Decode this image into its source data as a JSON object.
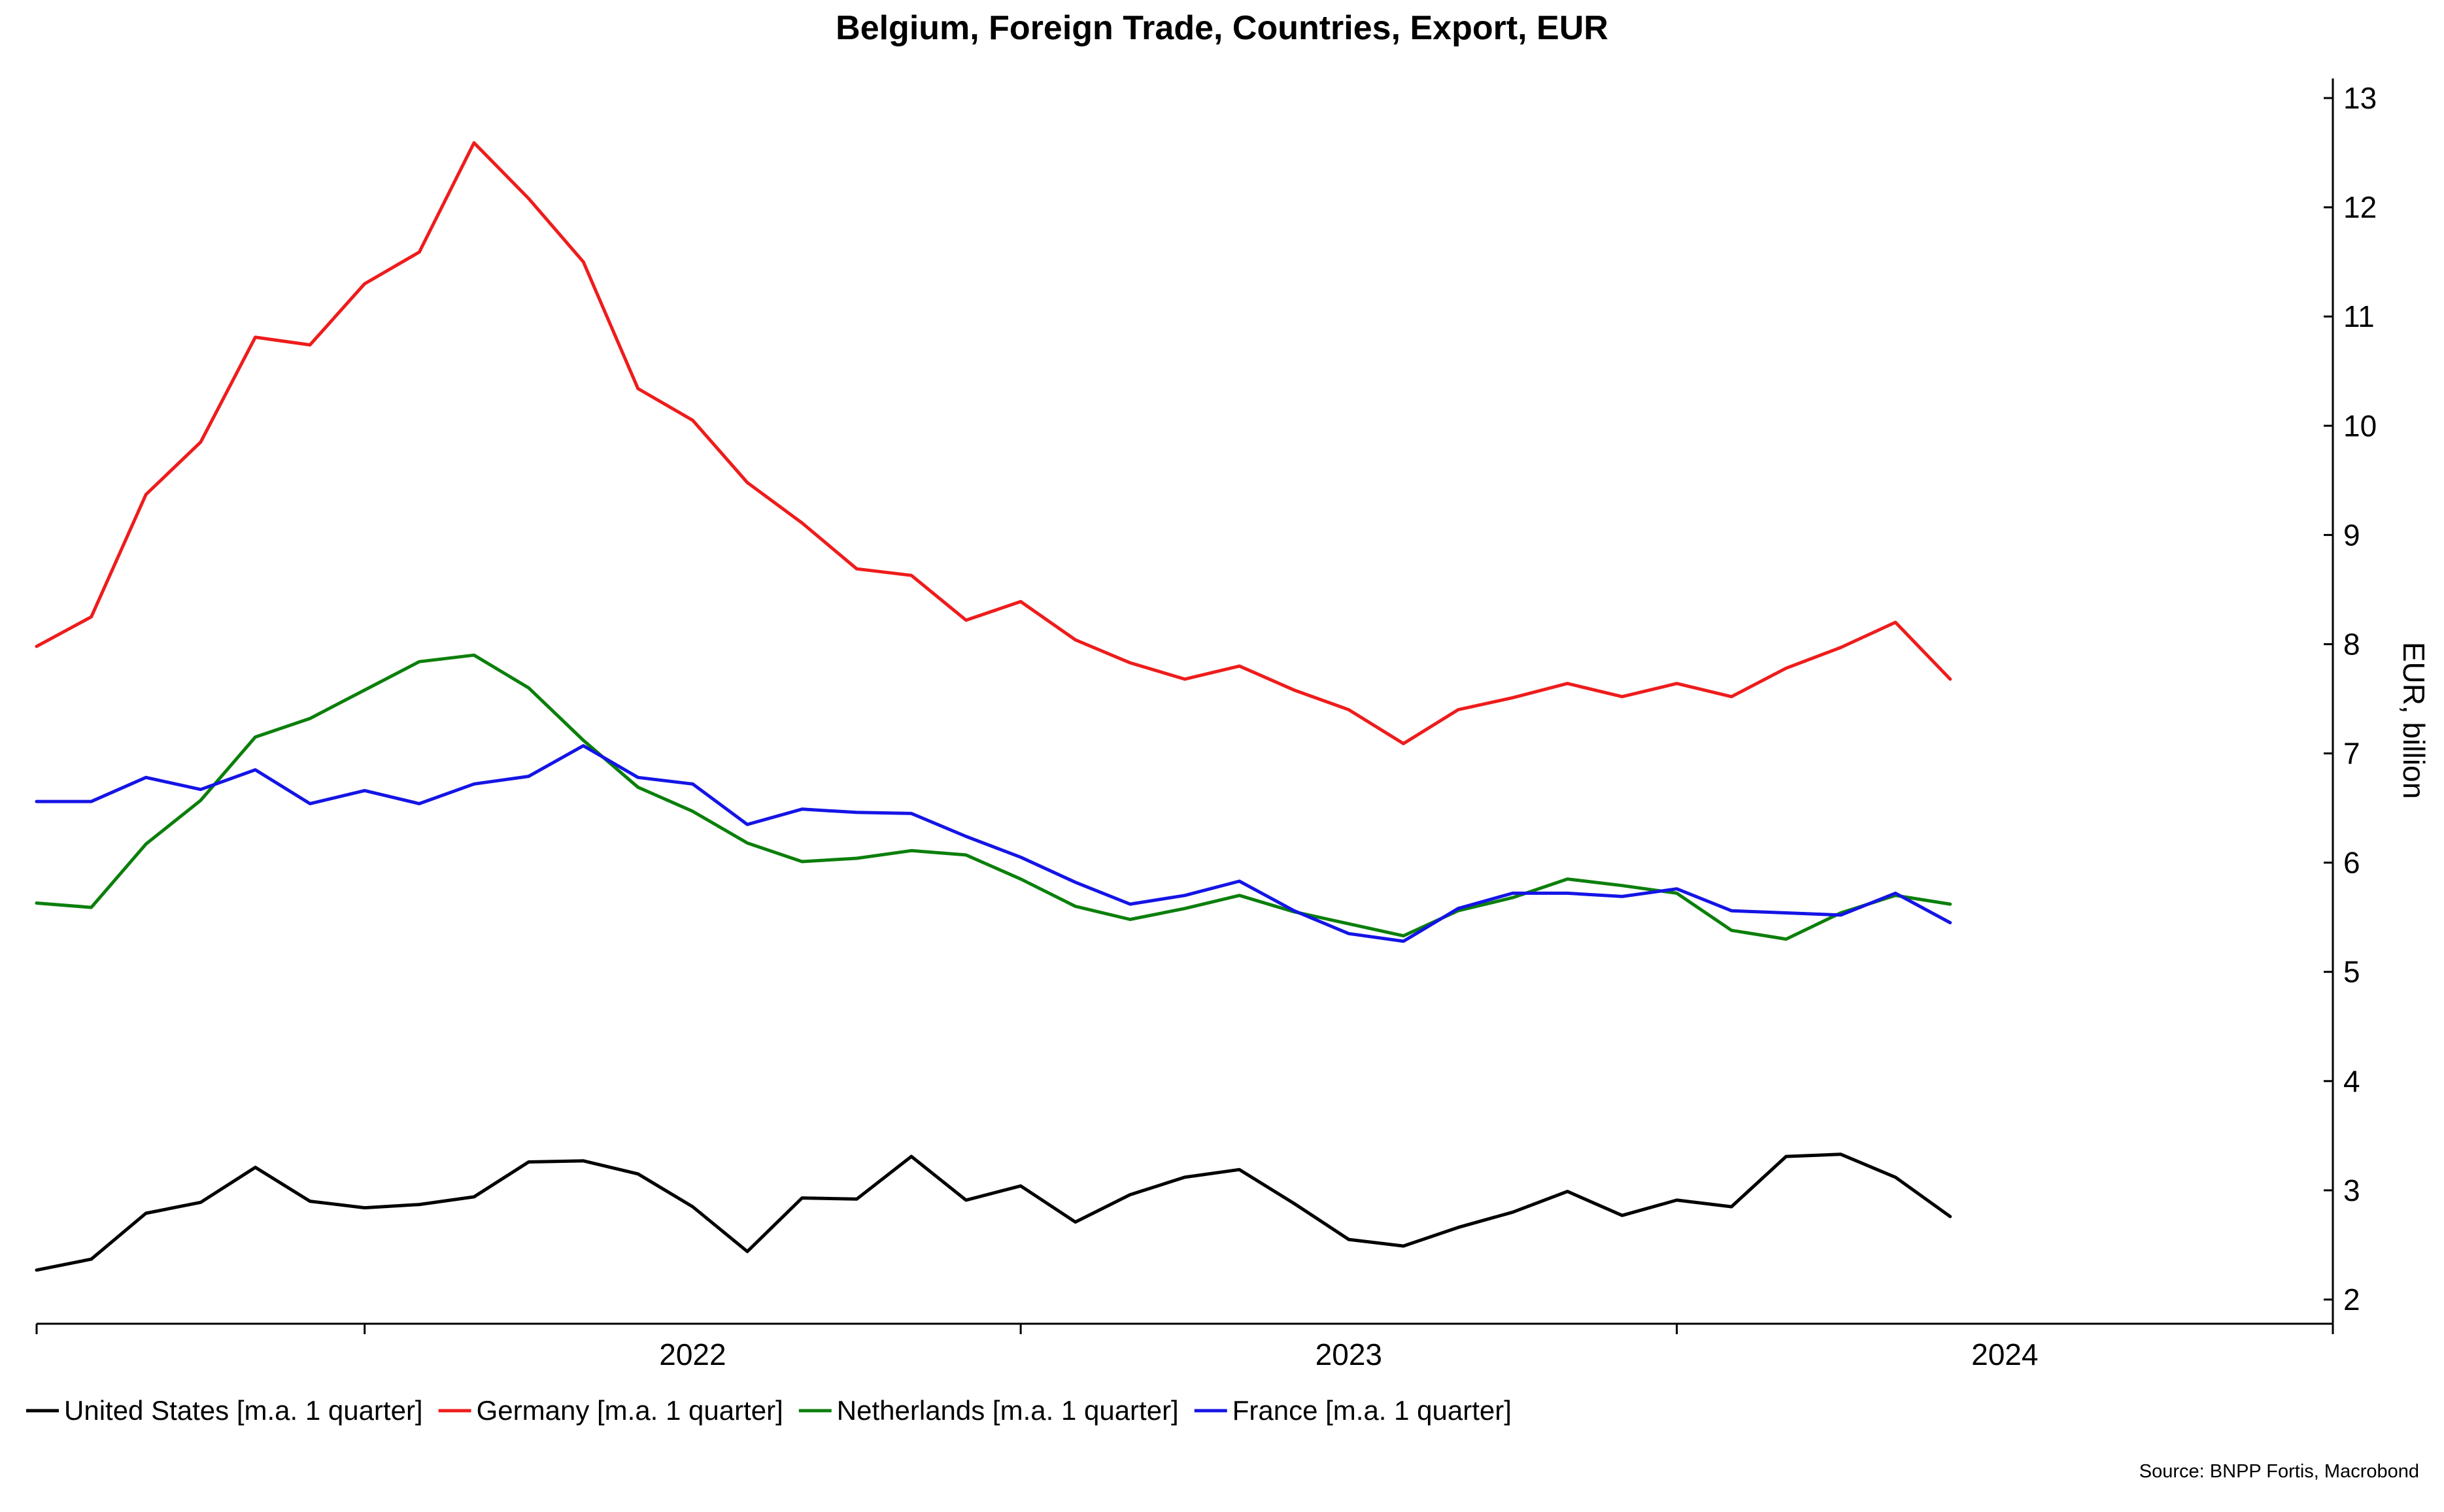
{
  "chart_data": {
    "type": "line",
    "title": "Belgium, Foreign Trade, Countries, Export, EUR",
    "ylabel": "EUR, billion",
    "xlabel": "",
    "ylim": [
      2,
      13
    ],
    "y_ticks": [
      2,
      3,
      4,
      5,
      6,
      7,
      8,
      9,
      10,
      11,
      12,
      13
    ],
    "x_range": [
      "2021-07",
      "2024-12"
    ],
    "x_tick_labels": [
      "2022",
      "2023",
      "2024"
    ],
    "x": [
      "2021-07",
      "2021-08",
      "2021-09",
      "2021-10",
      "2021-11",
      "2021-12",
      "2022-01",
      "2022-02",
      "2022-03",
      "2022-04",
      "2022-05",
      "2022-06",
      "2022-07",
      "2022-08",
      "2022-09",
      "2022-10",
      "2022-11",
      "2022-12",
      "2023-01",
      "2023-02",
      "2023-03",
      "2023-04",
      "2023-05",
      "2023-06",
      "2023-07",
      "2023-08",
      "2023-09",
      "2023-10",
      "2023-11",
      "2023-12",
      "2024-01",
      "2024-02",
      "2024-03",
      "2024-04",
      "2024-05",
      "2024-06",
      "2024-07"
    ],
    "series": [
      {
        "name": "United States [m.a. 1 quarter]",
        "color": "#000000",
        "values": [
          2.27,
          2.37,
          2.79,
          2.89,
          3.21,
          2.9,
          2.84,
          2.87,
          2.94,
          3.26,
          3.27,
          3.15,
          2.85,
          2.44,
          2.93,
          2.92,
          3.31,
          2.91,
          3.04,
          2.71,
          2.96,
          3.12,
          3.19,
          2.88,
          2.55,
          2.49,
          2.66,
          2.8,
          2.99,
          2.77,
          2.91,
          2.85,
          3.31,
          3.33,
          3.12,
          2.76,
          null
        ]
      },
      {
        "name": "Germany [m.a. 1 quarter]",
        "color": "#ee1c1c",
        "values": [
          7.98,
          8.25,
          9.37,
          9.85,
          10.81,
          10.74,
          11.3,
          11.59,
          12.59,
          12.08,
          11.5,
          10.34,
          10.05,
          9.48,
          9.11,
          8.69,
          8.63,
          8.22,
          8.39,
          8.04,
          7.83,
          7.68,
          7.8,
          7.58,
          7.4,
          7.09,
          7.4,
          7.51,
          7.64,
          7.52,
          7.64,
          7.52,
          7.78,
          7.97,
          8.2,
          7.68,
          null
        ]
      },
      {
        "name": "Netherlands [m.a. 1 quarter]",
        "color": "#0b7f0b",
        "values": [
          5.63,
          5.59,
          6.17,
          6.57,
          7.15,
          7.32,
          7.58,
          7.84,
          7.9,
          7.6,
          7.12,
          6.69,
          6.47,
          6.18,
          6.01,
          6.04,
          6.11,
          6.07,
          5.85,
          5.6,
          5.48,
          5.58,
          5.7,
          5.55,
          5.44,
          5.33,
          5.56,
          5.68,
          5.85,
          5.79,
          5.72,
          5.38,
          5.3,
          5.54,
          5.7,
          5.62,
          null
        ]
      },
      {
        "name": "France [m.a. 1 quarter]",
        "color": "#1414e6",
        "values": [
          6.56,
          6.56,
          6.78,
          6.67,
          6.85,
          6.54,
          6.66,
          6.54,
          6.72,
          6.79,
          7.07,
          6.78,
          6.72,
          6.35,
          6.49,
          6.46,
          6.45,
          6.24,
          6.05,
          5.82,
          5.62,
          5.7,
          5.83,
          5.56,
          5.35,
          5.28,
          5.58,
          5.72,
          5.72,
          5.69,
          5.76,
          5.56,
          5.54,
          5.52,
          5.72,
          5.45,
          null
        ]
      }
    ],
    "legend": "bottom-left",
    "grid": false,
    "source": "Source: BNPP Fortis, Macrobond"
  }
}
